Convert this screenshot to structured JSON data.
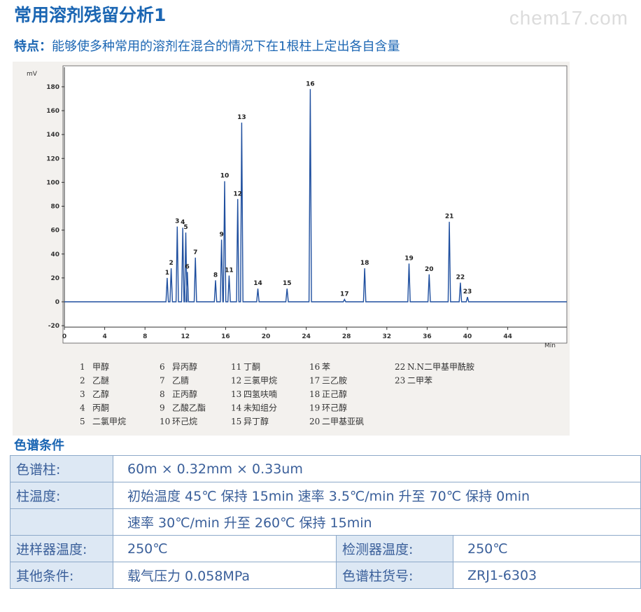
{
  "header": {
    "title": "常用溶剂残留分析1",
    "watermark": "chem17.com",
    "feature_label": "特点：",
    "feature_text": "能够使多种常用的溶剂在混合的情况下在1根柱上定出各自含量"
  },
  "chart_data": {
    "type": "line",
    "ylabel": "mV",
    "xlabel": "Min",
    "xlim": [
      0,
      45
    ],
    "ylim": [
      -20,
      190
    ],
    "xticks": [
      0,
      4,
      8,
      12,
      16,
      20,
      24,
      28,
      32,
      36,
      40,
      44
    ],
    "yticks": [
      -20,
      0,
      20,
      40,
      60,
      80,
      100,
      120,
      140,
      160,
      180
    ],
    "line_color": "#1f4f9f",
    "baseline": 0,
    "peaks": [
      {
        "label": "1",
        "x": 10.2,
        "y": 20
      },
      {
        "label": "2",
        "x": 10.6,
        "y": 28
      },
      {
        "label": "3",
        "x": 11.2,
        "y": 63
      },
      {
        "label": "4",
        "x": 11.75,
        "y": 62
      },
      {
        "label": "5",
        "x": 12.05,
        "y": 58
      },
      {
        "label": "6",
        "x": 12.2,
        "y": 25
      },
      {
        "label": "7",
        "x": 13.0,
        "y": 37
      },
      {
        "label": "8",
        "x": 15.0,
        "y": 18
      },
      {
        "label": "9",
        "x": 15.6,
        "y": 52
      },
      {
        "label": "10",
        "x": 15.9,
        "y": 101
      },
      {
        "label": "11",
        "x": 16.35,
        "y": 22
      },
      {
        "label": "12",
        "x": 17.2,
        "y": 86
      },
      {
        "label": "13",
        "x": 17.6,
        "y": 150
      },
      {
        "label": "14",
        "x": 19.2,
        "y": 11
      },
      {
        "label": "15",
        "x": 22.1,
        "y": 11
      },
      {
        "label": "16",
        "x": 24.4,
        "y": 178
      },
      {
        "label": "17",
        "x": 27.8,
        "y": 2
      },
      {
        "label": "18",
        "x": 29.8,
        "y": 28
      },
      {
        "label": "19",
        "x": 34.2,
        "y": 32
      },
      {
        "label": "20",
        "x": 36.2,
        "y": 23
      },
      {
        "label": "21",
        "x": 38.2,
        "y": 67
      },
      {
        "label": "22",
        "x": 39.3,
        "y": 16
      },
      {
        "label": "23",
        "x": 40.0,
        "y": 4
      }
    ],
    "legend": [
      [
        "1",
        "甲醇"
      ],
      [
        "2",
        "乙醚"
      ],
      [
        "3",
        "乙醇"
      ],
      [
        "4",
        "丙酮"
      ],
      [
        "5",
        "二氯甲烷"
      ],
      [
        "6",
        "异丙醇"
      ],
      [
        "7",
        "乙腈"
      ],
      [
        "8",
        "正丙醇"
      ],
      [
        "9",
        "乙酸乙酯"
      ],
      [
        "10",
        "环己烷"
      ],
      [
        "11",
        "丁酮"
      ],
      [
        "12",
        "三氯甲烷"
      ],
      [
        "13",
        "四氢呋喃"
      ],
      [
        "14",
        "未知组分"
      ],
      [
        "15",
        "异丁醇"
      ],
      [
        "16",
        "苯"
      ],
      [
        "17",
        "三乙胺"
      ],
      [
        "18",
        "正己醇"
      ],
      [
        "19",
        "环己醇"
      ],
      [
        "20",
        "二甲基亚砜"
      ],
      [
        "22",
        "N.N二甲基甲酰胺"
      ],
      [
        "23",
        "二甲苯"
      ]
    ]
  },
  "conditions": {
    "section_title": "色谱条件",
    "column_label": "色谱柱:",
    "column_value": "60m × 0.32mm × 0.33um",
    "temp_label": "柱温度:",
    "temp_line1": "初始温度 45℃ 保持 15min 速率  3.5℃/min 升至 70℃ 保持 0min",
    "temp_line2": "速率 30℃/min 升至 260℃  保持 15min",
    "injector_label": "进样器温度:",
    "injector_value": "250℃",
    "detector_label": "检测器温度:",
    "detector_value": "250℃",
    "other_label": "其他条件:",
    "other_value": "载气压力  0.058MPa",
    "partno_label": "色谱柱货号:",
    "partno_value": "ZRJ1-6303"
  }
}
